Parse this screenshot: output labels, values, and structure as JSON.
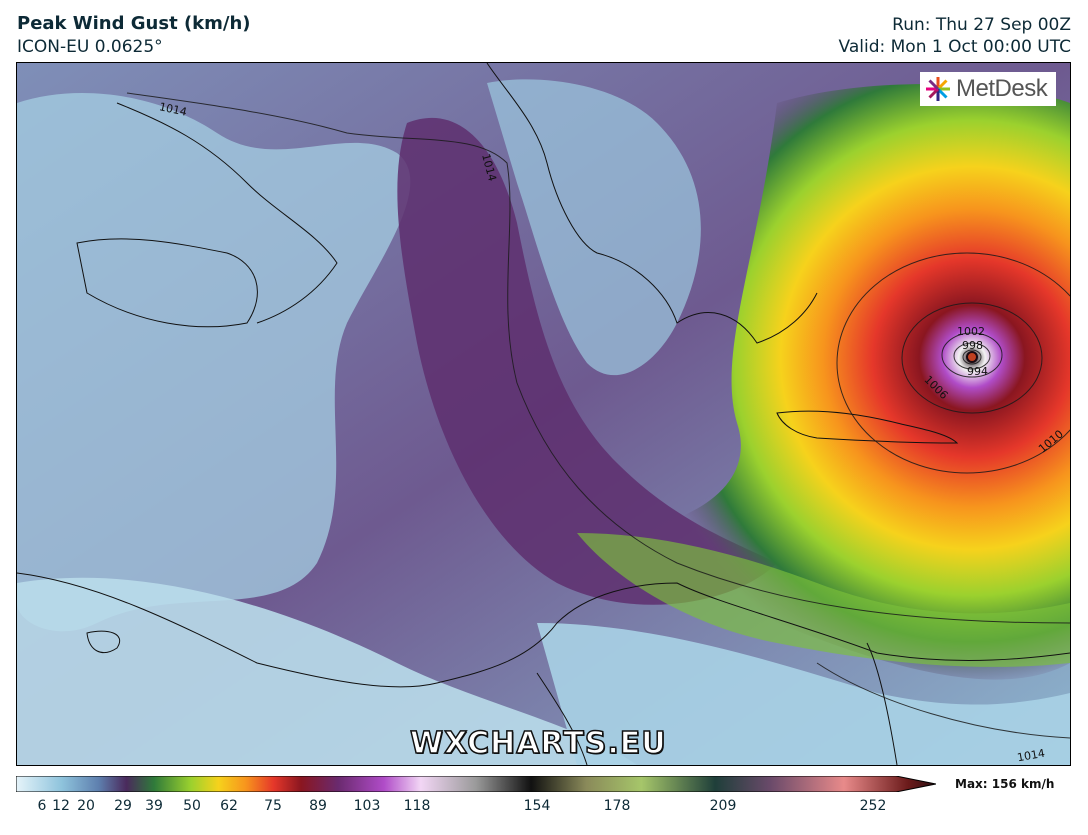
{
  "header": {
    "title": "Peak Wind Gust (km/h)",
    "model": "ICON-EU 0.0625°",
    "run": "Run: Thu 27 Sep 00Z",
    "valid": "Valid: Mon 1 Oct 00:00 UTC"
  },
  "logo": {
    "text": "MetDesk"
  },
  "watermark": {
    "text": "WXCHARTS.EU"
  },
  "isobar_labels": [
    "1014",
    "1014",
    "1002",
    "998",
    "994",
    "1006",
    "1010",
    "1014"
  ],
  "colorbar": {
    "ticks": [
      "6",
      "12",
      "20",
      "29",
      "39",
      "50",
      "62",
      "75",
      "89",
      "103",
      "118",
      "154",
      "178",
      "209",
      "252"
    ],
    "max_label": "Max: 156 km/h"
  },
  "colors": {
    "calm": "#9fd3e6",
    "moderate": "#6a3c7c",
    "strong": "#8fcf2a",
    "severe": "#e8442a",
    "extreme": "#2a0d10"
  }
}
